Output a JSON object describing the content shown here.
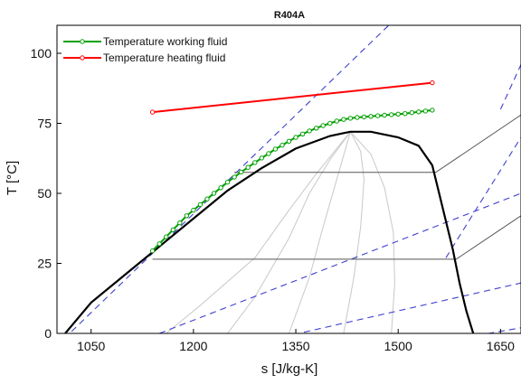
{
  "chart_data": {
    "type": "line",
    "title": "R404A",
    "xlabel": "s [J/kg-K]",
    "ylabel": "T [°C]",
    "xlim": [
      1000,
      1680
    ],
    "ylim": [
      0,
      110
    ],
    "x_ticks": [
      1050,
      1200,
      1350,
      1500,
      1650
    ],
    "y_ticks": [
      0,
      25,
      50,
      75,
      100
    ],
    "grid": false,
    "legend_position": "top-left",
    "legend_entries": [
      "Temperature working fluid",
      "Temperature heating fluid"
    ],
    "series": [
      {
        "name": "Temperature working fluid",
        "color": "#00a000",
        "marker": "circle-open",
        "x": [
          1140,
          1150,
          1160,
          1170,
          1180,
          1190,
          1200,
          1210,
          1220,
          1230,
          1240,
          1250,
          1260,
          1270,
          1280,
          1290,
          1300,
          1310,
          1320,
          1330,
          1340,
          1350,
          1360,
          1370,
          1380,
          1390,
          1400,
          1410,
          1420,
          1430,
          1440,
          1450,
          1460,
          1470,
          1480,
          1490,
          1500,
          1510,
          1520,
          1530,
          1540,
          1550
        ],
        "y": [
          29.5,
          32,
          34.5,
          37,
          39.5,
          42,
          44,
          46,
          48,
          50,
          52,
          54,
          55.8,
          57.6,
          59.3,
          61,
          62.6,
          64.2,
          65.8,
          67.2,
          68.6,
          70,
          71.2,
          72.3,
          73.3,
          74.2,
          75,
          75.8,
          76.4,
          76.8,
          77.1,
          77.3,
          77.5,
          77.7,
          77.9,
          78.1,
          78.3,
          78.5,
          78.8,
          79.1,
          79.4,
          79.7
        ]
      },
      {
        "name": "Temperature heating fluid",
        "color": "#ff0000",
        "marker": "circle-open",
        "x": [
          1140,
          1550
        ],
        "y": [
          79,
          89.5
        ]
      }
    ],
    "saturation_dome": {
      "color": "#000000",
      "x": [
        1012,
        1050,
        1100,
        1140,
        1160,
        1200,
        1250,
        1300,
        1350,
        1400,
        1430,
        1460,
        1500,
        1530,
        1550,
        1560,
        1580,
        1590,
        1600,
        1610
      ],
      "y": [
        0,
        11,
        21,
        29,
        33,
        41,
        51,
        59,
        66,
        70.5,
        72,
        72,
        70,
        67,
        60,
        50,
        30,
        18,
        8,
        0
      ]
    },
    "isobars": {
      "color": "#555555",
      "lines": [
        {
          "x": [
            1140,
            1585,
            1680
          ],
          "y": [
            26.5,
            26.5,
            42
          ]
        },
        {
          "x": [
            1260,
            1555,
            1680
          ],
          "y": [
            57.5,
            57.5,
            78
          ]
        }
      ]
    },
    "isochors": {
      "color": "#4040d0",
      "lines": [
        {
          "x": [
            1010,
            1550
          ],
          "y": [
            -2,
            125
          ]
        },
        {
          "x": [
            1150,
            1680
          ],
          "y": [
            0,
            50
          ]
        },
        {
          "x": [
            1300,
            1680
          ],
          "y": [
            -3,
            18
          ]
        },
        {
          "x": [
            1490,
            1680
          ],
          "y": [
            -6,
            2
          ]
        },
        {
          "x": [
            1570,
            1680
          ],
          "y": [
            27,
            70
          ]
        },
        {
          "x": [
            1650,
            1680
          ],
          "y": [
            80,
            96
          ]
        }
      ]
    },
    "quality_lines": {
      "color": "#c8c8c8",
      "lines": [
        {
          "x": [
            1160,
            1210,
            1290,
            1340,
            1380,
            1430
          ],
          "y": [
            0,
            10,
            27,
            44,
            57,
            72
          ]
        },
        {
          "x": [
            1250,
            1290,
            1340,
            1370,
            1400,
            1430
          ],
          "y": [
            0,
            13,
            34,
            50,
            62,
            72
          ]
        },
        {
          "x": [
            1340,
            1370,
            1390,
            1410,
            1430
          ],
          "y": [
            0,
            20,
            38,
            55,
            72
          ]
        },
        {
          "x": [
            1420,
            1435,
            1445,
            1450,
            1445,
            1430
          ],
          "y": [
            0,
            20,
            38,
            55,
            65,
            72
          ]
        },
        {
          "x": [
            1490,
            1495,
            1493,
            1480,
            1460,
            1430
          ],
          "y": [
            0,
            18,
            36,
            52,
            64,
            72
          ]
        }
      ]
    }
  }
}
